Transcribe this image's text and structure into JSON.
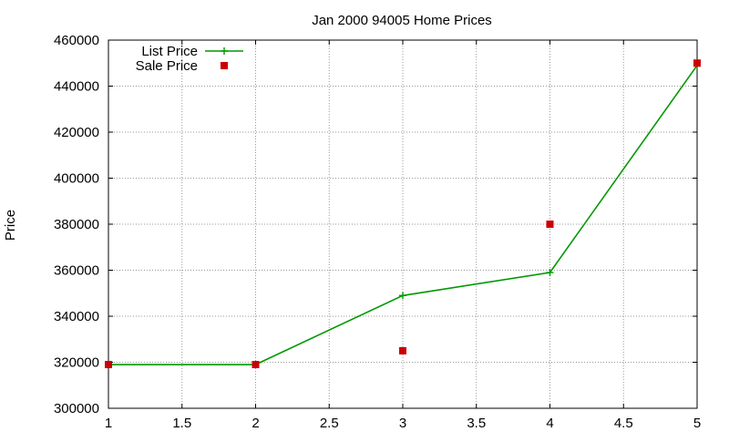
{
  "chart_data": {
    "type": "line",
    "title": "Jan 2000 94005 Home Prices",
    "xlabel": "",
    "ylabel": "Price",
    "xlim": [
      1,
      5
    ],
    "ylim": [
      300000,
      460000
    ],
    "x_ticks": [
      "1",
      "1.5",
      "2",
      "2.5",
      "3",
      "3.5",
      "4",
      "4.5",
      "5"
    ],
    "y_ticks": [
      "300000",
      "320000",
      "340000",
      "360000",
      "380000",
      "400000",
      "420000",
      "440000",
      "460000"
    ],
    "grid": true,
    "legend_position": "top-left",
    "series": [
      {
        "name": "List Price",
        "style": "line-with-plus-markers",
        "color": "#009900",
        "x": [
          1,
          2,
          3,
          4,
          5
        ],
        "y": [
          319000,
          319000,
          349000,
          359000,
          449000
        ]
      },
      {
        "name": "Sale Price",
        "style": "square-markers",
        "color": "#cc0000",
        "x": [
          1,
          2,
          3,
          4,
          5
        ],
        "y": [
          319000,
          319000,
          325000,
          380000,
          450000
        ]
      }
    ]
  }
}
